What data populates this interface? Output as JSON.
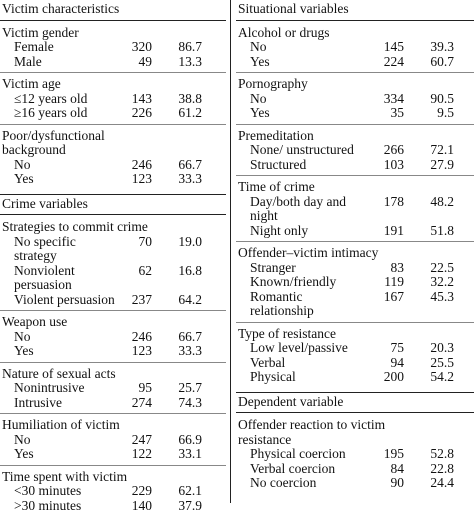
{
  "columns": [
    {
      "sections": [
        {
          "title": "Victim characteristics",
          "groups": [
            {
              "label": "Victim gender",
              "rows": [
                [
                  "Female",
                  "320",
                  "86.7"
                ],
                [
                  "Male",
                  "49",
                  "13.3"
                ]
              ]
            },
            {
              "label": "Victim age",
              "rows": [
                [
                  "≤12 years old",
                  "143",
                  "38.8"
                ],
                [
                  "≥16 years old",
                  "226",
                  "61.2"
                ]
              ]
            },
            {
              "label": "Poor/dysfunctional background",
              "rows": [
                [
                  "No",
                  "246",
                  "66.7"
                ],
                [
                  "Yes",
                  "123",
                  "33.3"
                ]
              ]
            }
          ]
        },
        {
          "title": "Crime variables",
          "groups": [
            {
              "label": "Strategies to commit crime",
              "rows": [
                [
                  "No specific strategy",
                  "70",
                  "19.0"
                ],
                [
                  "Nonviolent persuasion",
                  "62",
                  "16.8"
                ],
                [
                  "Violent persuasion",
                  "237",
                  "64.2"
                ]
              ]
            },
            {
              "label": "Weapon use",
              "rows": [
                [
                  "No",
                  "246",
                  "66.7"
                ],
                [
                  "Yes",
                  "123",
                  "33.3"
                ]
              ]
            },
            {
              "label": "Nature of sexual acts",
              "rows": [
                [
                  "Nonintrusive",
                  "95",
                  "25.7"
                ],
                [
                  "Intrusive",
                  "274",
                  "74.3"
                ]
              ]
            },
            {
              "label": "Humiliation of victim",
              "rows": [
                [
                  "No",
                  "247",
                  "66.9"
                ],
                [
                  "Yes",
                  "122",
                  "33.1"
                ]
              ]
            },
            {
              "label": "Time spent with victim",
              "rows": [
                [
                  "<30 minutes",
                  "229",
                  "62.1"
                ],
                [
                  ">30 minutes",
                  "140",
                  "37.9"
                ]
              ]
            }
          ]
        }
      ]
    },
    {
      "sections": [
        {
          "title": "Situational variables",
          "groups": [
            {
              "label": "Alcohol or drugs",
              "rows": [
                [
                  "No",
                  "145",
                  "39.3"
                ],
                [
                  "Yes",
                  "224",
                  "60.7"
                ]
              ]
            },
            {
              "label": "Pornography",
              "rows": [
                [
                  "No",
                  "334",
                  "90.5"
                ],
                [
                  "Yes",
                  "35",
                  "9.5"
                ]
              ]
            },
            {
              "label": "Premeditation",
              "rows": [
                [
                  "None/ unstructured",
                  "266",
                  "72.1"
                ],
                [
                  "Structured",
                  "103",
                  "27.9"
                ]
              ]
            },
            {
              "label": "Time of crime",
              "rows": [
                [
                  "Day/both day and night",
                  "178",
                  "48.2"
                ],
                [
                  "Night only",
                  "191",
                  "51.8"
                ]
              ]
            },
            {
              "label": "Offender–victim intimacy",
              "rows": [
                [
                  "Stranger",
                  "83",
                  "22.5"
                ],
                [
                  "Known/friendly",
                  "119",
                  "32.2"
                ],
                [
                  "Romantic relationship",
                  "167",
                  "45.3"
                ]
              ]
            },
            {
              "label": "Type of resistance",
              "rows": [
                [
                  "Low level/passive",
                  "75",
                  "20.3"
                ],
                [
                  "Verbal",
                  "94",
                  "25.5"
                ],
                [
                  "Physical",
                  "200",
                  "54.2"
                ]
              ]
            }
          ]
        },
        {
          "title": "Dependent variable",
          "groups": [
            {
              "label": "Offender reaction to victim resistance",
              "rows": [
                [
                  "Physical coercion",
                  "195",
                  "52.8"
                ],
                [
                  "Verbal coercion",
                  "84",
                  "22.8"
                ],
                [
                  "No coercion",
                  "90",
                  "24.4"
                ]
              ]
            }
          ]
        }
      ]
    }
  ]
}
